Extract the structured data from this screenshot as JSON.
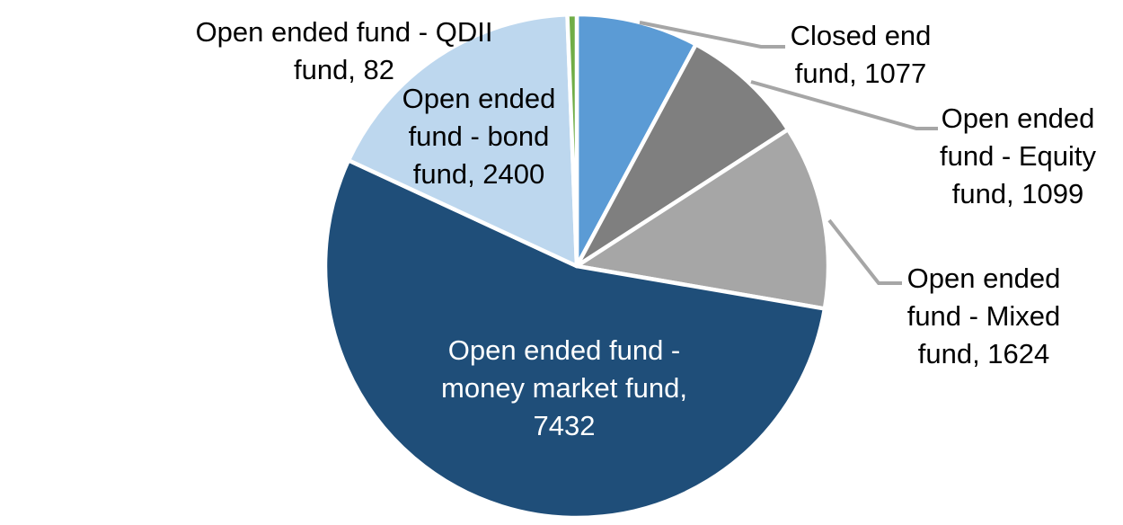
{
  "chart_data": {
    "type": "pie",
    "title": "",
    "background_color": "#FFFFFF",
    "total": 13714,
    "start_angle_deg": 0,
    "direction": "clockwise",
    "legend": "none",
    "slice_border_color": "#FFFFFF",
    "leader_line_color": "#A6A6A6",
    "inside_label_text_color": "#FFFFFF",
    "outside_label_text_color": "#000000",
    "slices": [
      {
        "key": "closed-end-fund",
        "label": "Closed end fund",
        "value": 1077,
        "color": "#5B9BD5",
        "label_text": "Closed end fund, 1077",
        "label_lines": [
          "Closed end",
          "fund, 1077"
        ],
        "label_placement": "outside-right-with-leader"
      },
      {
        "key": "equity-fund",
        "label": "Open ended fund - Equity fund",
        "value": 1099,
        "color": "#7F7F7F",
        "label_text": "Open ended fund - Equity fund, 1099",
        "label_lines": [
          "Open ended",
          "fund - Equity",
          "fund, 1099"
        ],
        "label_placement": "outside-right-with-leader"
      },
      {
        "key": "mixed-fund",
        "label": "Open ended fund - Mixed fund",
        "value": 1624,
        "color": "#A6A6A6",
        "label_text": "Open ended fund - Mixed fund, 1624",
        "label_lines": [
          "Open ended",
          "fund - Mixed",
          "fund, 1624"
        ],
        "label_placement": "outside-right-with-leader"
      },
      {
        "key": "money-market-fund",
        "label": "Open ended fund - money market fund",
        "value": 7432,
        "color": "#1F4E79",
        "label_text": "Open ended fund - money market fund, 7432",
        "label_lines": [
          "Open ended fund -",
          "money market fund,",
          "7432"
        ],
        "label_placement": "inside"
      },
      {
        "key": "bond-fund",
        "label": "Open ended fund - bond fund",
        "value": 2400,
        "color": "#BDD7EE",
        "label_text": "Open ended fund - bond fund, 2400",
        "label_lines": [
          "Open ended",
          "fund - bond",
          "fund, 2400"
        ],
        "label_placement": "outside-top"
      },
      {
        "key": "qdii-fund",
        "label": "Open ended fund - QDII fund",
        "value": 82,
        "color": "#70AD47",
        "label_text": "Open ended fund - QDII fund, 82",
        "label_lines": [
          "Open ended fund - QDII",
          "fund, 82"
        ],
        "label_placement": "outside-top"
      }
    ]
  }
}
